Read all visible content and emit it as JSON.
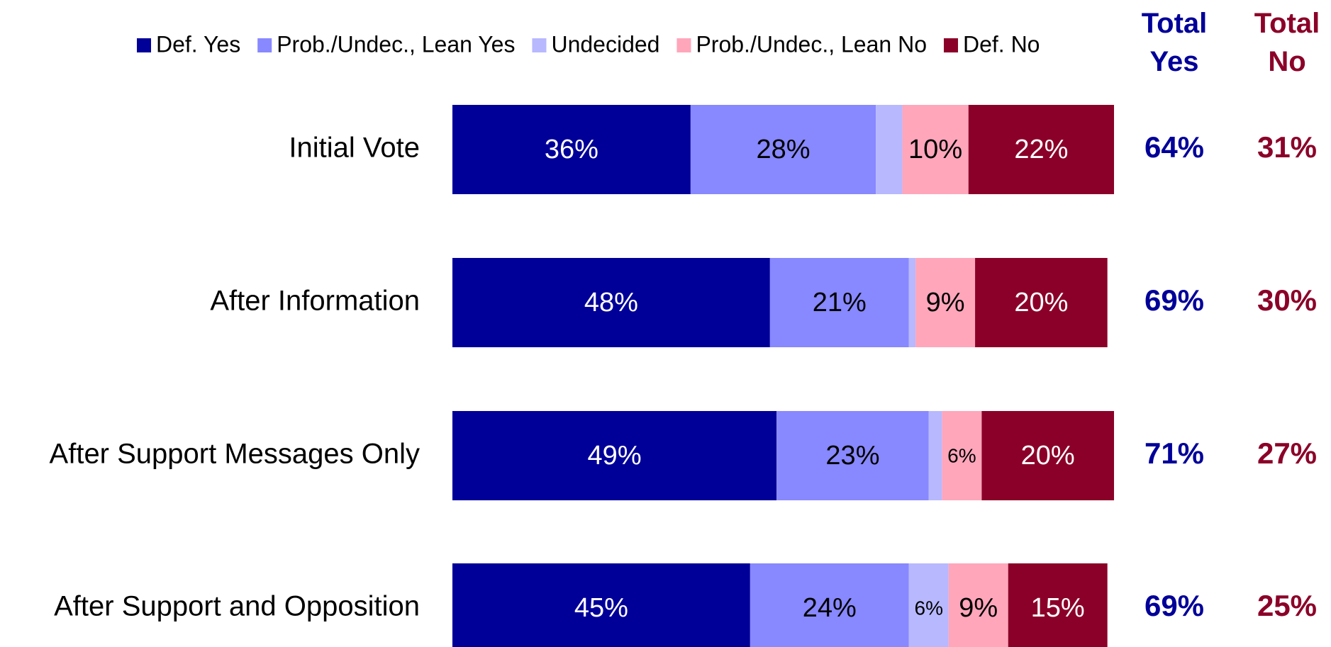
{
  "chart_data": {
    "type": "stacked-bar-horizontal",
    "categories": [
      "Initial Vote",
      "After Information",
      "After Support Messages Only",
      "After Support and Opposition"
    ],
    "xlim": [
      0,
      100
    ],
    "legend": "top",
    "series": [
      {
        "name": "Def. Yes",
        "color": "#000099",
        "values": [
          36,
          48,
          49,
          45
        ],
        "value_labels": [
          "36%",
          "48%",
          "49%",
          "45%"
        ]
      },
      {
        "name": "Prob./Undec., Lean Yes",
        "color": "#8888ff",
        "values": [
          28,
          21,
          23,
          24
        ],
        "value_labels": [
          "28%",
          "21%",
          "23%",
          "24%"
        ]
      },
      {
        "name": "Undecided",
        "color": "#b8b8ff",
        "values": [
          4,
          1,
          2,
          6
        ],
        "value_labels": [
          null,
          null,
          null,
          "6%"
        ]
      },
      {
        "name": "Prob./Undec., Lean No",
        "color": "#ffa6bb",
        "values": [
          10,
          9,
          6,
          9
        ],
        "value_labels": [
          "10%",
          "9%",
          "6%",
          "9%"
        ]
      },
      {
        "name": "Def. No",
        "color": "#8b0028",
        "values": [
          22,
          20,
          20,
          15
        ],
        "value_labels": [
          "22%",
          "20%",
          "20%",
          "15%"
        ]
      }
    ],
    "totals": [
      {
        "name": "Total Yes",
        "color": "#000099",
        "values": [
          64,
          69,
          71,
          69
        ],
        "value_labels": [
          "64%",
          "69%",
          "71%",
          "69%"
        ]
      },
      {
        "name": "Total No",
        "color": "#8b0028",
        "values": [
          31,
          30,
          27,
          25
        ],
        "value_labels": [
          "31%",
          "30%",
          "27%",
          "25%"
        ]
      }
    ]
  }
}
